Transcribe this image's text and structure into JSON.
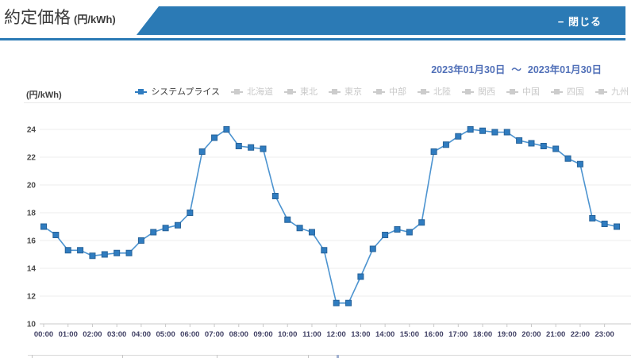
{
  "header": {
    "title": "約定価格",
    "title_unit": "(円/kWh)",
    "close_label": "− 閉じる"
  },
  "date_range": {
    "start": "2023年01月30日",
    "separator": "～",
    "end": "2023年01月30日"
  },
  "colors": {
    "accent": "#2b7ab5",
    "line": "#4d94d0",
    "marker": "#2f7cc0",
    "marker_border": "#266299",
    "disabled": "#cccccc",
    "date_text": "#5170b8"
  },
  "chart_data": {
    "type": "line",
    "title": "約定価格 (円/kWh)",
    "unit_label": "(円/kWh)",
    "ylim": [
      10,
      24
    ],
    "yticks": [
      24,
      22,
      20,
      18,
      16,
      14,
      12,
      10
    ],
    "grid": "horizontal",
    "legend_position": "top",
    "x_label_every": 2,
    "x_categories": [
      "00:00",
      "00:30",
      "01:00",
      "01:30",
      "02:00",
      "02:30",
      "03:00",
      "03:30",
      "04:00",
      "04:30",
      "05:00",
      "05:30",
      "06:00",
      "06:30",
      "07:00",
      "07:30",
      "08:00",
      "08:30",
      "09:00",
      "09:30",
      "10:00",
      "10:30",
      "11:00",
      "11:30",
      "12:00",
      "12:30",
      "13:00",
      "13:30",
      "14:00",
      "14:30",
      "15:00",
      "15:30",
      "16:00",
      "16:30",
      "17:00",
      "17:30",
      "18:00",
      "18:30",
      "19:00",
      "19:30",
      "20:00",
      "20:30",
      "21:00",
      "21:30",
      "22:00",
      "22:30",
      "23:00",
      "23:30"
    ],
    "series": [
      {
        "name": "システムプライス",
        "enabled": true,
        "values": [
          17.0,
          16.4,
          15.3,
          15.3,
          14.9,
          15.0,
          15.1,
          15.1,
          16.0,
          16.6,
          16.9,
          17.1,
          18.0,
          22.4,
          23.4,
          24.0,
          22.8,
          22.7,
          22.6,
          19.2,
          17.5,
          16.9,
          16.6,
          15.3,
          11.5,
          11.5,
          13.4,
          15.4,
          16.4,
          16.8,
          16.6,
          17.3,
          22.4,
          22.9,
          23.5,
          24.0,
          23.9,
          23.8,
          23.8,
          23.2,
          23.0,
          22.8,
          22.6,
          21.9,
          21.5,
          17.6,
          17.2,
          17.0
        ]
      }
    ],
    "legend": [
      {
        "label": "システムプライス",
        "enabled": true
      },
      {
        "label": "北海道",
        "enabled": false
      },
      {
        "label": "東北",
        "enabled": false
      },
      {
        "label": "東京",
        "enabled": false
      },
      {
        "label": "中部",
        "enabled": false
      },
      {
        "label": "北陸",
        "enabled": false
      },
      {
        "label": "関西",
        "enabled": false
      },
      {
        "label": "中国",
        "enabled": false
      },
      {
        "label": "四国",
        "enabled": false
      },
      {
        "label": "九州",
        "enabled": false
      }
    ]
  }
}
